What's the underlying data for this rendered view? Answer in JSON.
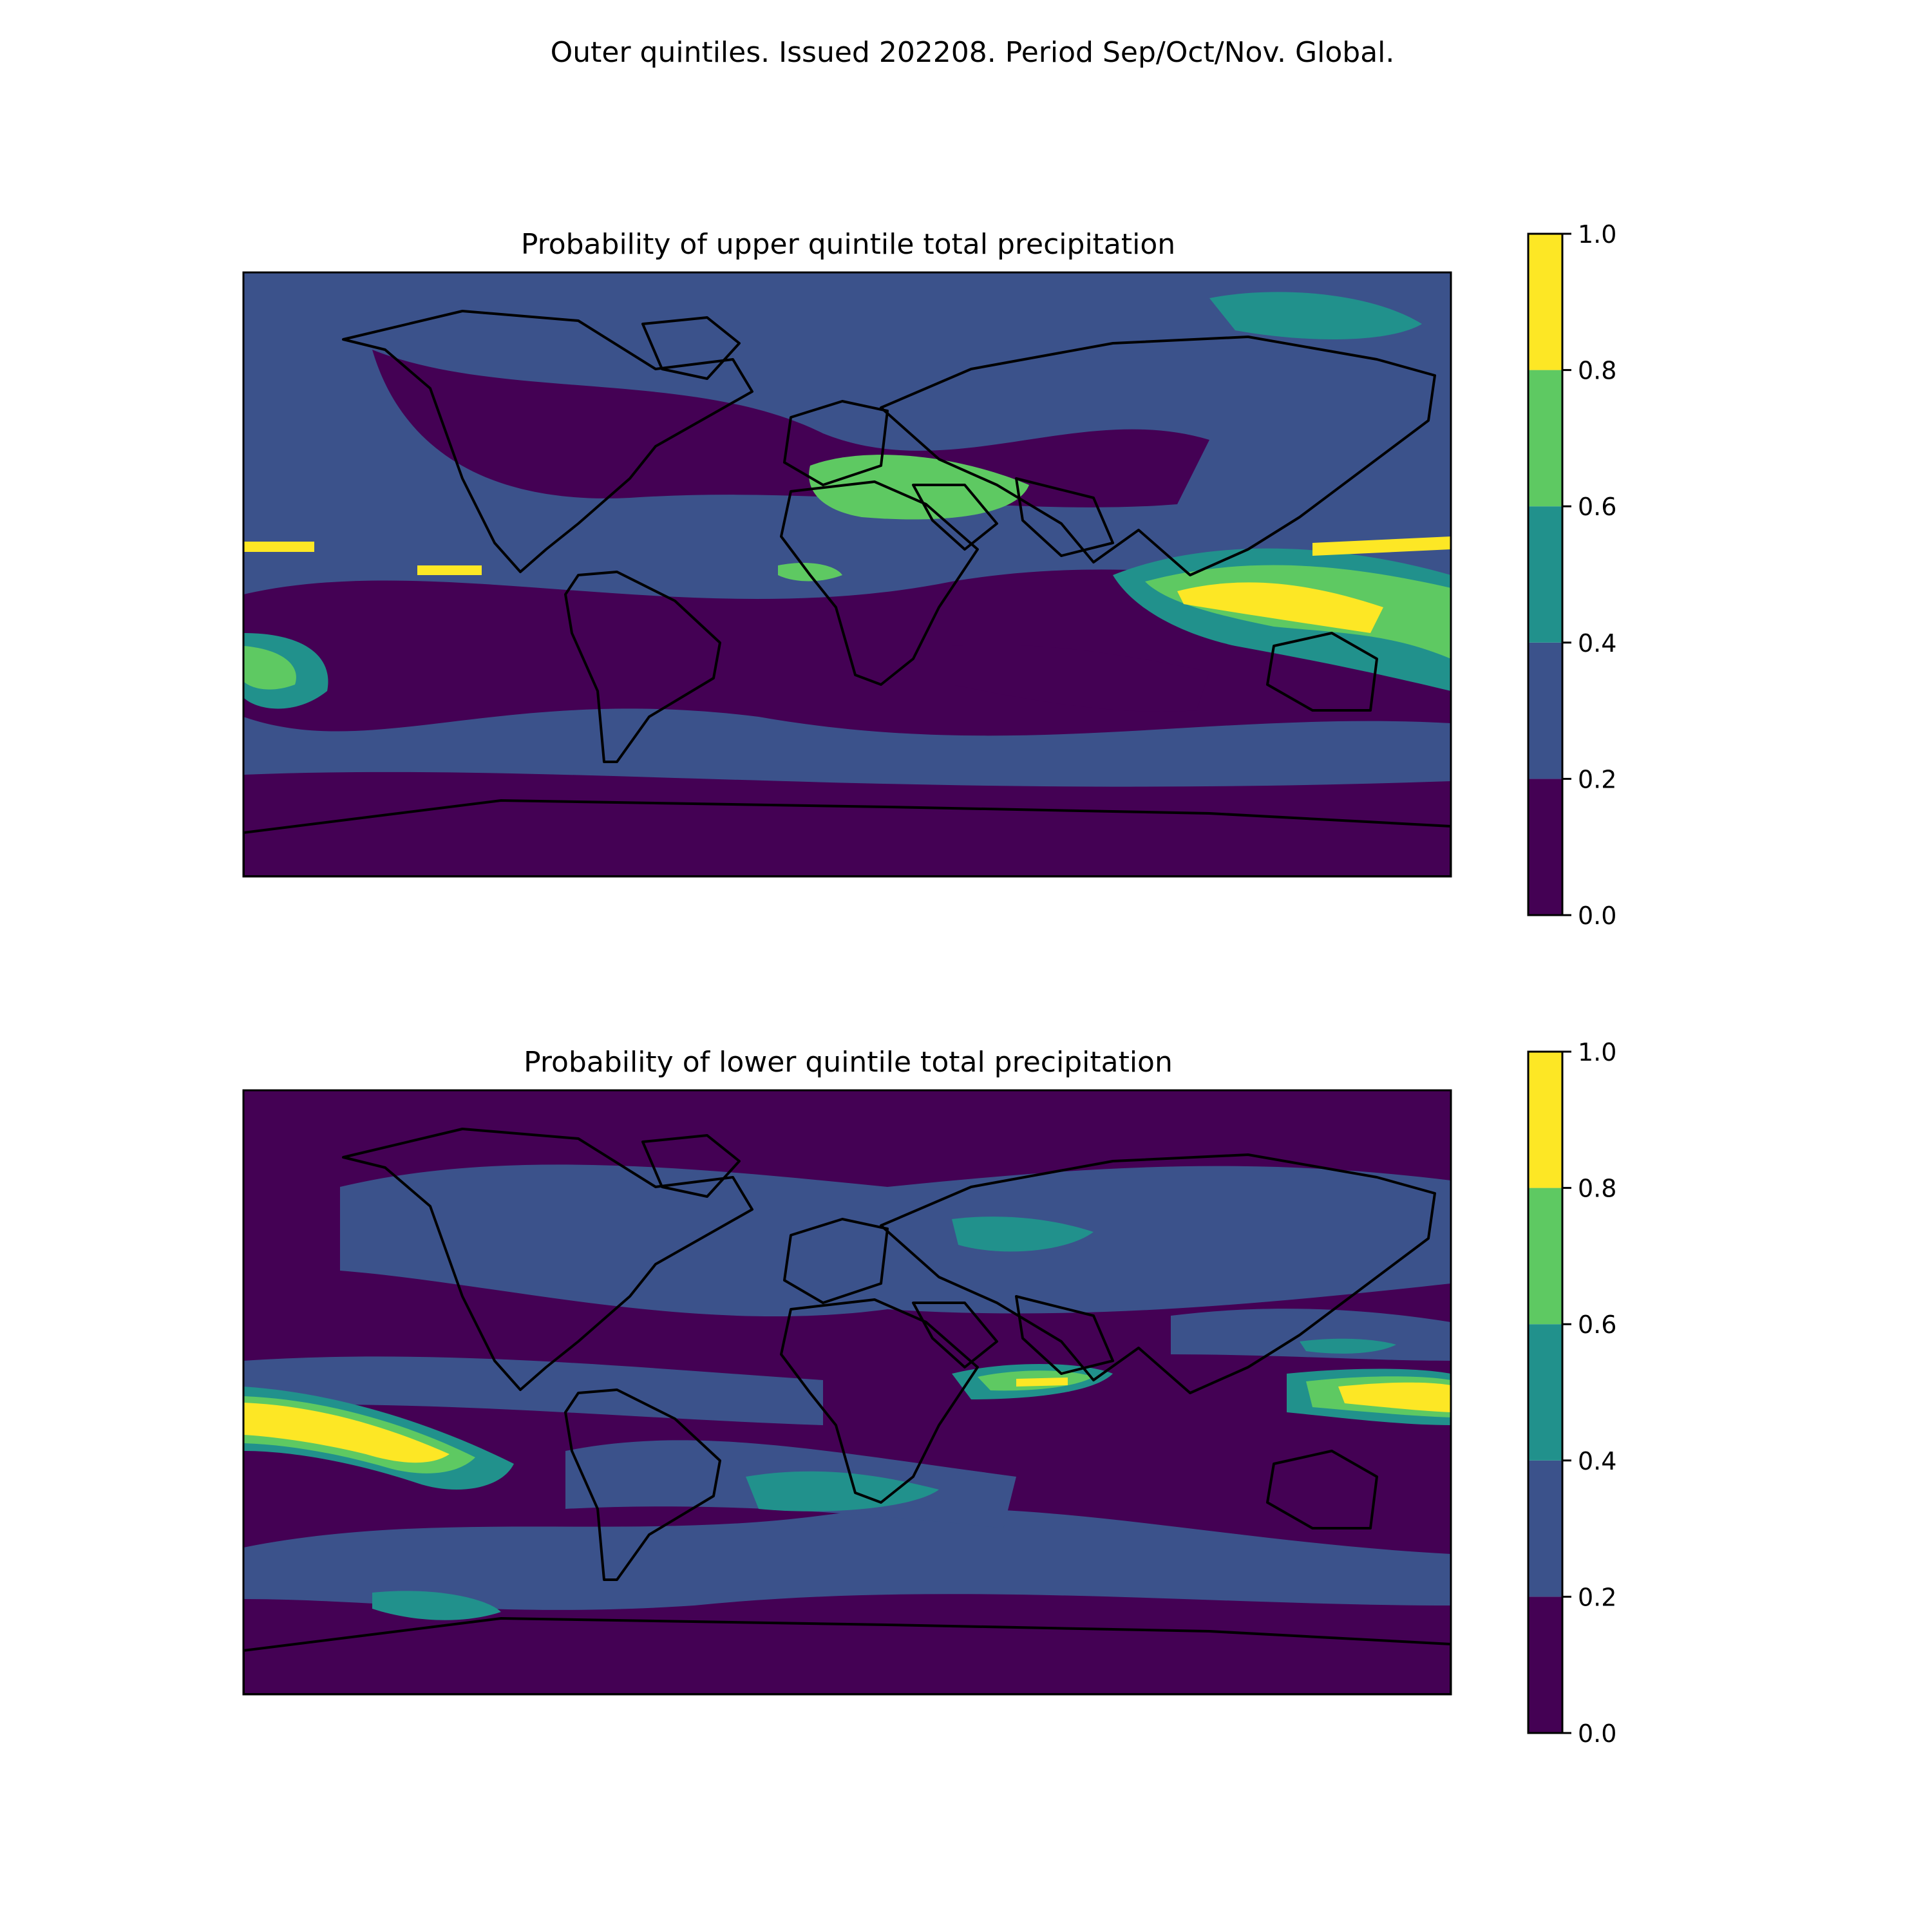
{
  "figure": {
    "suptitle": "Outer quintiles. Issued 202208. Period Sep/Oct/Nov. Global."
  },
  "colors": {
    "levels": [
      "#440154",
      "#3b528b",
      "#21918c",
      "#5ec962",
      "#fde725"
    ],
    "coastline": "#000000",
    "frame": "#000000"
  },
  "map_layer_icon": "world-map-background",
  "chart_data": [
    {
      "type": "heatmap",
      "title": "Probability of upper quintile total precipitation",
      "xlabel": "",
      "ylabel": "",
      "colorbar": {
        "levels": [
          0.0,
          0.2,
          0.4,
          0.6,
          0.8,
          1.0
        ],
        "tick_labels": [
          "0.0",
          "0.2",
          "0.4",
          "0.6",
          "0.8",
          "1.0"
        ],
        "range": [
          0.0,
          1.0
        ]
      },
      "regions": [
        {
          "lon": -10,
          "lat": 10,
          "value": 0.45
        },
        {
          "lon": 120,
          "lat": 0,
          "value": 0.85
        },
        {
          "lon": 150,
          "lat": -20,
          "value": 0.65
        },
        {
          "lon": -170,
          "lat": -15,
          "value": 0.65
        },
        {
          "lon": -170,
          "lat": 8,
          "value": 0.85
        }
      ]
    },
    {
      "type": "heatmap",
      "title": "Probability of lower quintile total precipitation",
      "xlabel": "",
      "ylabel": "",
      "colorbar": {
        "levels": [
          0.0,
          0.2,
          0.4,
          0.6,
          0.8,
          1.0
        ],
        "tick_labels": [
          "0.0",
          "0.2",
          "0.4",
          "0.6",
          "0.8",
          "1.0"
        ],
        "range": [
          0.0,
          1.0
        ]
      },
      "regions": [
        {
          "lon": -150,
          "lat": -5,
          "value": 0.85
        },
        {
          "lon": 55,
          "lat": -5,
          "value": 0.75
        },
        {
          "lon": 165,
          "lat": -2,
          "value": 0.85
        },
        {
          "lon": 30,
          "lat": 45,
          "value": 0.5
        },
        {
          "lon": -30,
          "lat": -30,
          "value": 0.45
        }
      ]
    }
  ]
}
